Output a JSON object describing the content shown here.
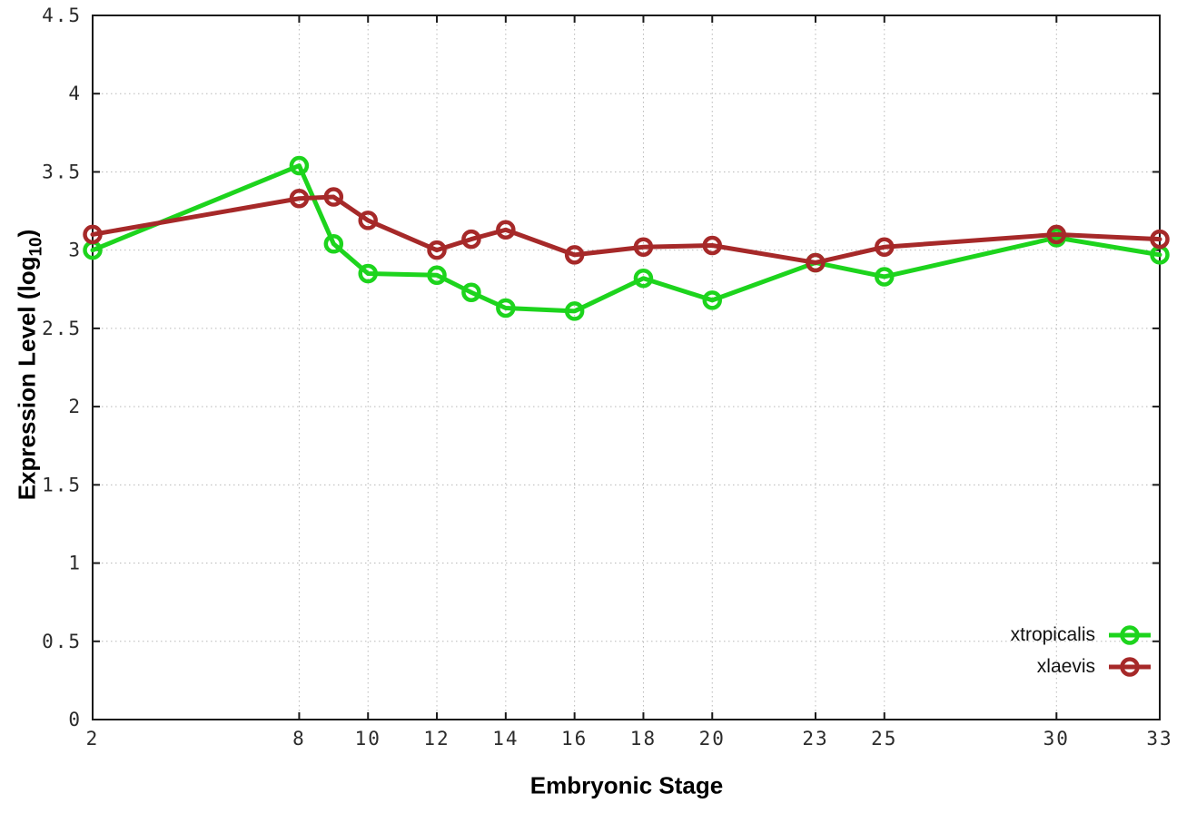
{
  "figure": {
    "background": "#ffffff",
    "border_color": "#1a1a1a",
    "grid_color": "#b8b8b8",
    "tick_label_color": "#2b2b2b"
  },
  "chart_data": {
    "type": "line",
    "title": "",
    "xlabel": "Embryonic Stage",
    "ylabel": {
      "main": "Expression Level (log",
      "sub": "10",
      "end": ")"
    },
    "xlim": [
      2,
      33
    ],
    "ylim": [
      0,
      4.5
    ],
    "grid": true,
    "legend_position": "bottom-right",
    "x_tick_values": [
      2,
      8,
      10,
      12,
      14,
      16,
      18,
      20,
      23,
      25,
      30,
      33
    ],
    "x_tick_labels": [
      "2",
      "8",
      "10",
      "12",
      "14",
      "16",
      "18",
      "20",
      "23",
      "25",
      "30",
      "33"
    ],
    "y_tick_values": [
      0,
      0.5,
      1,
      1.5,
      2,
      2.5,
      3,
      3.5,
      4,
      4.5
    ],
    "y_tick_labels": [
      "0",
      "0.5",
      "1",
      "1.5",
      "2",
      "2.5",
      "3",
      "3.5",
      "4",
      "4.5"
    ],
    "x": [
      2,
      8,
      9,
      10,
      12,
      13,
      14,
      16,
      18,
      20,
      23,
      25,
      30,
      33
    ],
    "series": [
      {
        "name": "xtropicalis",
        "color": "#1dd41d",
        "marker": "open-circle",
        "values": [
          3.0,
          3.54,
          3.04,
          2.85,
          2.84,
          2.73,
          2.63,
          2.61,
          2.82,
          2.68,
          2.92,
          2.83,
          3.08,
          2.97
        ]
      },
      {
        "name": "xlaevis",
        "color": "#a62929",
        "marker": "open-circle",
        "values": [
          3.1,
          3.33,
          3.34,
          3.19,
          3.0,
          3.07,
          3.13,
          2.97,
          3.02,
          3.03,
          2.92,
          3.02,
          3.1,
          3.07
        ]
      }
    ]
  }
}
